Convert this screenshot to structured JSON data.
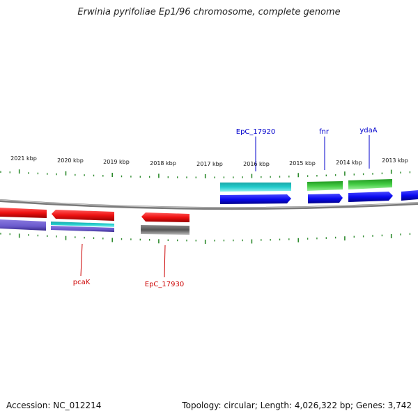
{
  "title": "Erwinia pyrifoliae Ep1/96 chromosome, complete genome",
  "footer": {
    "accession": "Accession: NC_012214",
    "summary": "Topology: circular; Length: 4,026,322 bp; Genes: 3,742"
  },
  "scale_labels": [
    "2021 kbp",
    "2020 kbp",
    "2019 kbp",
    "2018 kbp",
    "2017 kbp",
    "2016 kbp",
    "2015 kbp",
    "2014 kbp",
    "2013 kbp"
  ],
  "gene_labels": {
    "top": [
      "EpC_17920",
      "fnr",
      "ydaA"
    ],
    "bottom": [
      "pcaK",
      "EpC_17930"
    ]
  },
  "colors": {
    "forward_label": "#0000cc",
    "reverse_label": "#cc0000",
    "tick": "#2e8b2e",
    "cds_blue": "#0a0af0",
    "cds_red": "#ee1111",
    "cds_cyan": "#22cccc",
    "cds_green": "#33bb33",
    "cds_purple": "#6a5acd",
    "cds_gray": "#666666",
    "backbone": "#888888"
  }
}
